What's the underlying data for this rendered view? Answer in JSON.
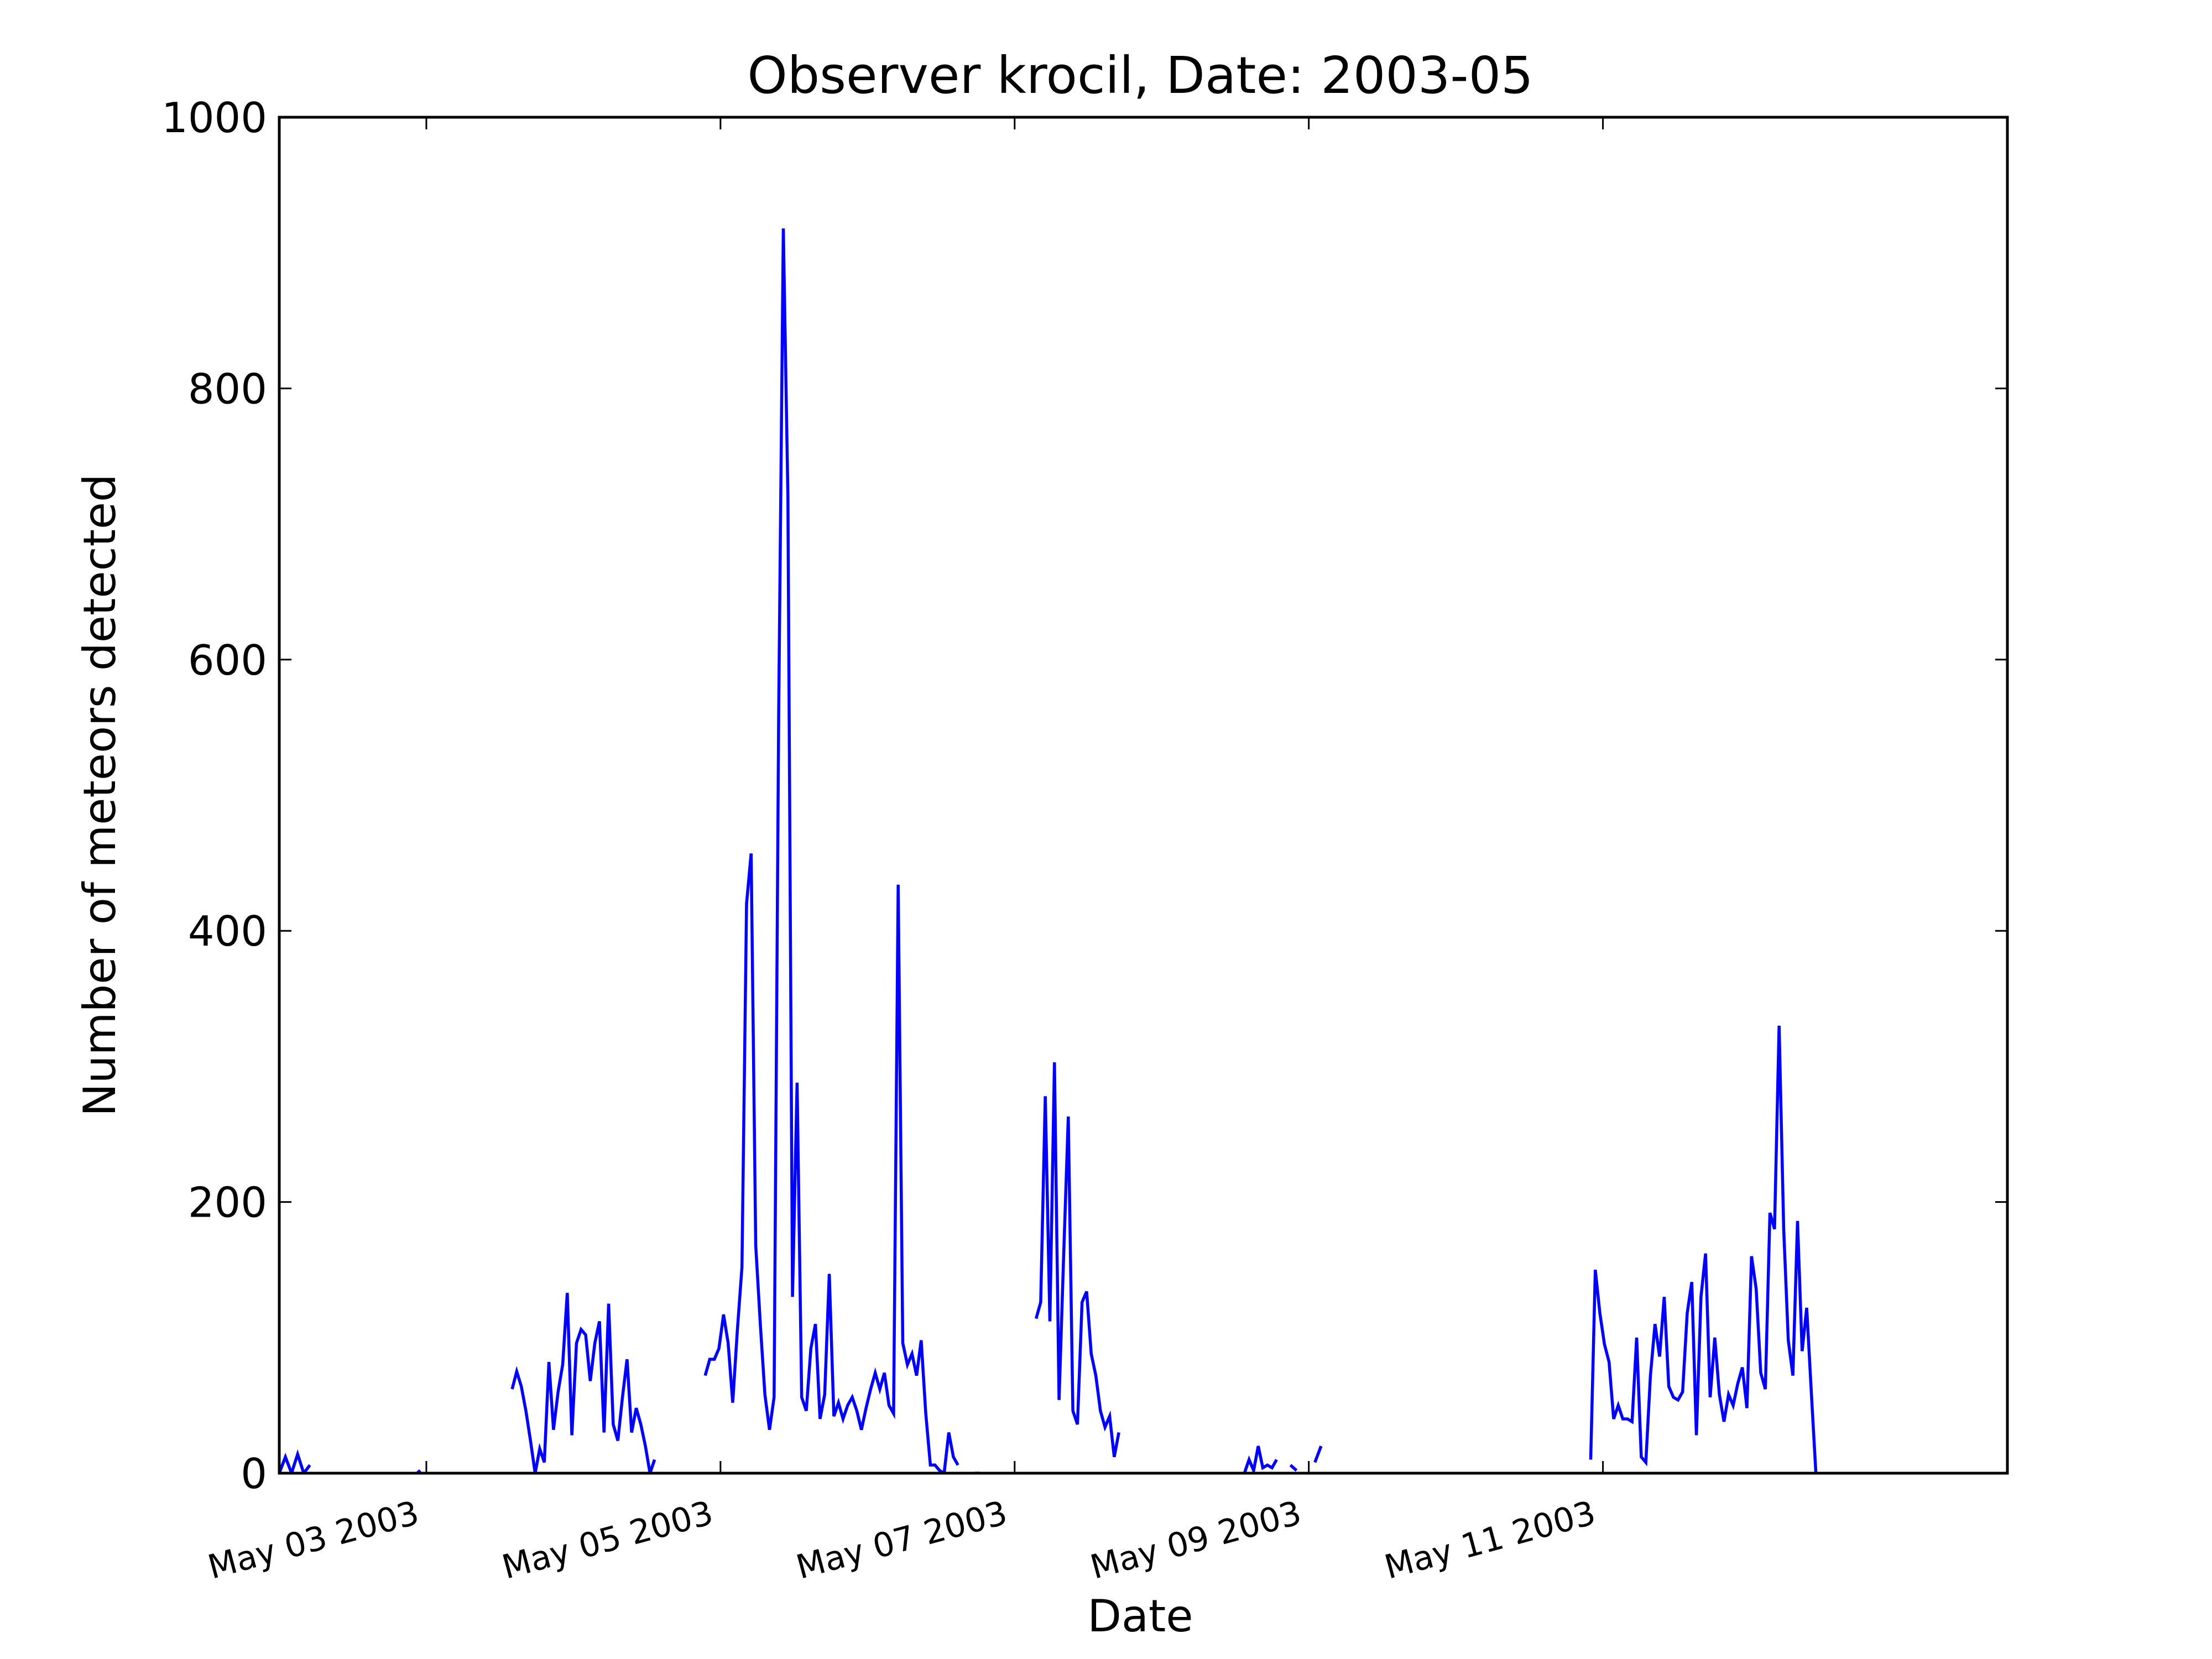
{
  "chart_data": {
    "type": "line",
    "title": "Observer krocil, Date: 2003-05",
    "xlabel": "Date",
    "ylabel": "Number of meteors detected",
    "ylim": [
      0,
      1000
    ],
    "yticks": [
      0,
      200,
      400,
      600,
      800,
      1000
    ],
    "ytick_labels": [
      "0",
      "200",
      "400",
      "600",
      "800",
      "1000"
    ],
    "xlim": [
      "2003-05-02",
      "2003-05-13 18:00"
    ],
    "xticks": [
      "2003-05-03",
      "2003-05-05",
      "2003-05-07",
      "2003-05-09",
      "2003-05-11"
    ],
    "xtick_labels": [
      "May 03 2003",
      "May 05 2003",
      "May 07 2003",
      "May 09 2003",
      "May 11 2003"
    ],
    "grid": false,
    "legend": "none",
    "colors": {
      "series": "#0000ff",
      "axes": "#000000",
      "background": "#ffffff"
    },
    "series": [
      {
        "color": "#0000ff",
        "segments": [
          [
            [
              "2003-05-02 00:00",
              0
            ],
            [
              "2003-05-02 01:00",
              12
            ],
            [
              "2003-05-02 02:00",
              0
            ],
            [
              "2003-05-02 03:00",
              14
            ],
            [
              "2003-05-02 04:00",
              0
            ],
            [
              "2003-05-02 05:00",
              6
            ]
          ],
          [
            [
              "2003-05-02 22:30",
              0
            ],
            [
              "2003-05-02 23:00",
              2
            ]
          ],
          [
            [
              "2003-05-03 14:00",
              62
            ],
            [
              "2003-05-03 14:45",
              75
            ],
            [
              "2003-05-03 15:30",
              64
            ],
            [
              "2003-05-03 16:15",
              46
            ],
            [
              "2003-05-03 17:00",
              24
            ],
            [
              "2003-05-03 17:45",
              0
            ],
            [
              "2003-05-03 18:30",
              18
            ],
            [
              "2003-05-03 19:15",
              8
            ],
            [
              "2003-05-03 20:00",
              82
            ],
            [
              "2003-05-03 20:45",
              32
            ],
            [
              "2003-05-03 21:30",
              60
            ],
            [
              "2003-05-03 22:15",
              80
            ],
            [
              "2003-05-03 23:00",
              133
            ],
            [
              "2003-05-03 23:45",
              28
            ],
            [
              "2003-05-04 00:30",
              96
            ],
            [
              "2003-05-04 01:15",
              106
            ],
            [
              "2003-05-04 02:00",
              102
            ],
            [
              "2003-05-04 02:45",
              68
            ],
            [
              "2003-05-04 03:30",
              96
            ],
            [
              "2003-05-04 04:15",
              112
            ],
            [
              "2003-05-04 05:00",
              30
            ],
            [
              "2003-05-04 05:45",
              125
            ],
            [
              "2003-05-04 06:30",
              36
            ],
            [
              "2003-05-04 07:15",
              24
            ],
            [
              "2003-05-04 08:00",
              56
            ],
            [
              "2003-05-04 08:45",
              84
            ],
            [
              "2003-05-04 09:30",
              30
            ],
            [
              "2003-05-04 10:15",
              48
            ],
            [
              "2003-05-04 11:00",
              36
            ],
            [
              "2003-05-04 11:45",
              20
            ],
            [
              "2003-05-04 12:30",
              0
            ],
            [
              "2003-05-04 13:15",
              10
            ]
          ],
          [
            [
              "2003-05-04 21:30",
              72
            ],
            [
              "2003-05-04 22:15",
              84
            ],
            [
              "2003-05-04 23:00",
              84
            ],
            [
              "2003-05-04 23:45",
              92
            ],
            [
              "2003-05-05 00:30",
              117
            ],
            [
              "2003-05-05 01:15",
              96
            ],
            [
              "2003-05-05 02:00",
              52
            ],
            [
              "2003-05-05 02:45",
              105
            ],
            [
              "2003-05-05 03:30",
              152
            ],
            [
              "2003-05-05 04:15",
              420
            ],
            [
              "2003-05-05 05:00",
              457
            ],
            [
              "2003-05-05 05:45",
              168
            ],
            [
              "2003-05-05 06:30",
              110
            ],
            [
              "2003-05-05 07:15",
              58
            ],
            [
              "2003-05-05 08:00",
              32
            ],
            [
              "2003-05-05 08:45",
              56
            ],
            [
              "2003-05-05 09:30",
              560
            ],
            [
              "2003-05-05 10:15",
              918
            ],
            [
              "2003-05-05 11:00",
              720
            ],
            [
              "2003-05-05 11:45",
              130
            ],
            [
              "2003-05-05 12:30",
              288
            ],
            [
              "2003-05-05 13:15",
              56
            ],
            [
              "2003-05-05 14:00",
              46
            ],
            [
              "2003-05-05 14:45",
              92
            ],
            [
              "2003-05-05 15:30",
              110
            ],
            [
              "2003-05-05 16:15",
              40
            ],
            [
              "2003-05-05 17:00",
              58
            ],
            [
              "2003-05-05 17:45",
              147
            ],
            [
              "2003-05-05 18:30",
              42
            ],
            [
              "2003-05-05 19:15",
              52
            ],
            [
              "2003-05-05 20:00",
              40
            ],
            [
              "2003-05-05 20:45",
              50
            ],
            [
              "2003-05-05 21:30",
              56
            ],
            [
              "2003-05-05 22:15",
              46
            ],
            [
              "2003-05-05 23:00",
              32
            ],
            [
              "2003-05-05 23:45",
              48
            ],
            [
              "2003-05-06 00:30",
              62
            ],
            [
              "2003-05-06 01:15",
              74
            ],
            [
              "2003-05-06 02:00",
              62
            ],
            [
              "2003-05-06 02:45",
              74
            ],
            [
              "2003-05-06 03:30",
              50
            ],
            [
              "2003-05-06 04:15",
              44
            ],
            [
              "2003-05-06 05:00",
              434
            ],
            [
              "2003-05-06 05:45",
              96
            ],
            [
              "2003-05-06 06:30",
              80
            ],
            [
              "2003-05-06 07:15",
              88
            ],
            [
              "2003-05-06 08:00",
              72
            ],
            [
              "2003-05-06 08:45",
              98
            ],
            [
              "2003-05-06 09:30",
              44
            ],
            [
              "2003-05-06 10:15",
              6
            ],
            [
              "2003-05-06 11:00",
              6
            ],
            [
              "2003-05-06 11:45",
              2
            ],
            [
              "2003-05-06 12:30",
              0
            ],
            [
              "2003-05-06 13:15",
              30
            ],
            [
              "2003-05-06 14:00",
              12
            ],
            [
              "2003-05-06 14:45",
              6
            ]
          ],
          [
            [
              "2003-05-06 17:30",
              0
            ],
            [
              "2003-05-06 18:15",
              0
            ]
          ],
          [
            [
              "2003-05-07 03:30",
              114
            ],
            [
              "2003-05-07 04:15",
              126
            ],
            [
              "2003-05-07 05:00",
              278
            ],
            [
              "2003-05-07 05:45",
              112
            ],
            [
              "2003-05-07 06:30",
              303
            ],
            [
              "2003-05-07 07:15",
              54
            ],
            [
              "2003-05-07 08:00",
              160
            ],
            [
              "2003-05-07 08:45",
              263
            ],
            [
              "2003-05-07 09:30",
              46
            ],
            [
              "2003-05-07 10:15",
              36
            ],
            [
              "2003-05-07 11:00",
              126
            ],
            [
              "2003-05-07 11:45",
              134
            ],
            [
              "2003-05-07 12:30",
              88
            ],
            [
              "2003-05-07 13:15",
              72
            ],
            [
              "2003-05-07 14:00",
              46
            ],
            [
              "2003-05-07 14:45",
              34
            ],
            [
              "2003-05-07 15:30",
              42
            ],
            [
              "2003-05-07 16:15",
              12
            ],
            [
              "2003-05-07 17:00",
              30
            ]
          ],
          [
            [
              "2003-05-08 13:30",
              0
            ],
            [
              "2003-05-08 14:15",
              10
            ],
            [
              "2003-05-08 15:00",
              2
            ],
            [
              "2003-05-08 15:45",
              20
            ],
            [
              "2003-05-08 16:30",
              4
            ],
            [
              "2003-05-08 17:15",
              6
            ],
            [
              "2003-05-08 18:00",
              4
            ],
            [
              "2003-05-08 18:45",
              10
            ]
          ],
          [
            [
              "2003-05-08 21:00",
              6
            ],
            [
              "2003-05-08 22:00",
              2
            ]
          ],
          [
            [
              "2003-05-09 01:00",
              8
            ],
            [
              "2003-05-09 02:00",
              20
            ]
          ],
          [
            [
              "2003-05-10 22:00",
              10
            ],
            [
              "2003-05-10 22:45",
              150
            ],
            [
              "2003-05-10 23:30",
              118
            ],
            [
              "2003-05-11 00:15",
              95
            ],
            [
              "2003-05-11 01:00",
              82
            ],
            [
              "2003-05-11 01:45",
              40
            ],
            [
              "2003-05-11 02:30",
              50
            ],
            [
              "2003-05-11 03:15",
              40
            ],
            [
              "2003-05-11 04:00",
              40
            ],
            [
              "2003-05-11 04:45",
              38
            ],
            [
              "2003-05-11 05:30",
              100
            ],
            [
              "2003-05-11 06:15",
              12
            ],
            [
              "2003-05-11 07:00",
              8
            ],
            [
              "2003-05-11 07:45",
              72
            ],
            [
              "2003-05-11 08:30",
              110
            ],
            [
              "2003-05-11 09:15",
              86
            ],
            [
              "2003-05-11 10:00",
              130
            ],
            [
              "2003-05-11 10:45",
              64
            ],
            [
              "2003-05-11 11:30",
              56
            ],
            [
              "2003-05-11 12:15",
              54
            ],
            [
              "2003-05-11 13:00",
              60
            ],
            [
              "2003-05-11 13:45",
              118
            ],
            [
              "2003-05-11 14:30",
              141
            ],
            [
              "2003-05-11 15:15",
              28
            ],
            [
              "2003-05-11 16:00",
              130
            ],
            [
              "2003-05-11 16:45",
              162
            ],
            [
              "2003-05-11 17:30",
              56
            ],
            [
              "2003-05-11 18:15",
              100
            ],
            [
              "2003-05-11 19:00",
              58
            ],
            [
              "2003-05-11 19:45",
              38
            ],
            [
              "2003-05-11 20:30",
              58
            ],
            [
              "2003-05-11 21:15",
              50
            ],
            [
              "2003-05-11 22:00",
              66
            ],
            [
              "2003-05-11 22:45",
              78
            ],
            [
              "2003-05-11 23:30",
              48
            ],
            [
              "2003-05-12 00:15",
              160
            ],
            [
              "2003-05-12 01:00",
              136
            ],
            [
              "2003-05-12 01:45",
              74
            ],
            [
              "2003-05-12 02:30",
              62
            ],
            [
              "2003-05-12 03:15",
              192
            ],
            [
              "2003-05-12 04:00",
              180
            ],
            [
              "2003-05-12 04:45",
              330
            ],
            [
              "2003-05-12 05:30",
              180
            ],
            [
              "2003-05-12 06:15",
              98
            ],
            [
              "2003-05-12 07:00",
              72
            ],
            [
              "2003-05-12 07:45",
              186
            ],
            [
              "2003-05-12 08:30",
              90
            ],
            [
              "2003-05-12 09:15",
              122
            ],
            [
              "2003-05-12 10:00",
              60
            ],
            [
              "2003-05-12 10:45",
              0
            ]
          ]
        ]
      }
    ]
  }
}
